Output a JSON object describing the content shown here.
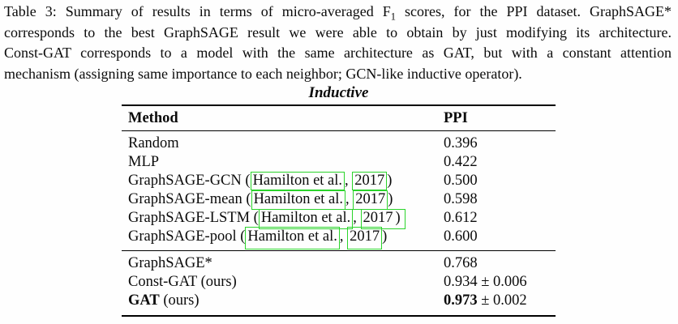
{
  "caption": {
    "line1_pre": "Table 3: Summary of results in terms of micro-averaged F",
    "line1_sub": "1",
    "line1_post": " scores, for the PPI dataset. GraphSAGE*",
    "line2": "corresponds to the best GraphSAGE result we were able to obtain by just modifying its architecture.",
    "line3": "Const-GAT corresponds to a model with the same architecture as GAT, but with a constant attention",
    "line4": "mechanism (assigning same importance to each neighbor; GCN-like inductive operator)."
  },
  "table": {
    "group_header": "Inductive",
    "columns": {
      "method": "Method",
      "value": "PPI"
    },
    "link_color": "#2bd42b",
    "rows_top": [
      {
        "method": "Random",
        "value": "0.396"
      },
      {
        "method": "MLP",
        "value": "0.422"
      },
      {
        "prefix": "GraphSAGE-GCN (",
        "author": "Hamilton et al.",
        "comma": ", ",
        "year": "2017",
        "suffix": ")",
        "value": "0.500"
      },
      {
        "prefix": "GraphSAGE-mean (",
        "author": "Hamilton et al.",
        "comma": ", ",
        "year": "2017",
        "suffix": ")",
        "value": "0.598"
      },
      {
        "prefix": "GraphSAGE-LSTM (",
        "author": "Hamilton et al.",
        "comma": ", ",
        "year": "2017",
        "suffix": ")",
        "value": "0.612"
      },
      {
        "prefix": "GraphSAGE-pool (",
        "author": "Hamilton et al.",
        "comma": ", ",
        "year": "2017",
        "suffix": ")",
        "value": "0.600"
      }
    ],
    "rows_bottom": [
      {
        "method": "GraphSAGE*",
        "value": "0.768"
      },
      {
        "method": "Const-GAT (ours)",
        "value": "0.934 ± 0.006"
      },
      {
        "method_bold": "GAT",
        "method_rest": " (ours)",
        "value_bold": "0.973",
        "value_rest": " ± 0.002"
      }
    ]
  }
}
